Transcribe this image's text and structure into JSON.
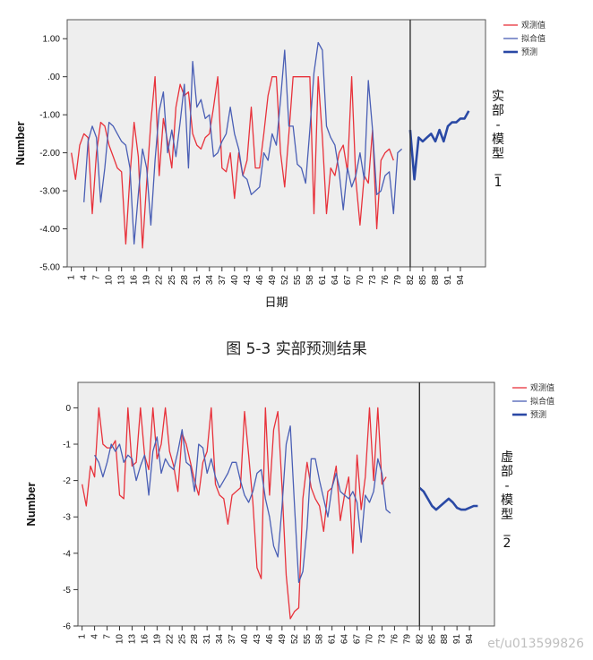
{
  "caption": "图 5-3  实部预测结果",
  "watermark": "et/u013599826",
  "colors": {
    "observed": "#e8323b",
    "fitted": "#4a5fb5",
    "forecast": "#2a49a5",
    "plot_bg": "#eeeeee"
  },
  "chart_data": [
    {
      "type": "line",
      "ylabel": "Number",
      "xlabel": "日期",
      "panel_label": "实部-模型_1",
      "ylim": [
        -5,
        1.5
      ],
      "yticks": [
        1,
        0,
        -1,
        -2,
        -3,
        -4,
        -5
      ],
      "ytick_labels": [
        "1.00",
        ".00",
        "-1.00",
        "-2.00",
        "-3.00",
        "-4.00",
        "-5.00"
      ],
      "xlim": [
        0,
        100
      ],
      "xticks": [
        1,
        4,
        7,
        10,
        13,
        16,
        19,
        22,
        25,
        28,
        31,
        34,
        37,
        40,
        43,
        46,
        49,
        52,
        55,
        58,
        61,
        64,
        67,
        70,
        73,
        76,
        79,
        82,
        85,
        88,
        91,
        94
      ],
      "forecast_start": 82,
      "legend": [
        "观测值",
        "拟合值",
        "预测"
      ],
      "series": [
        {
          "name": "观测值",
          "x_start": 1,
          "values": [
            -2.0,
            -2.7,
            -1.8,
            -1.5,
            -1.6,
            -3.6,
            -2.0,
            -1.2,
            -1.3,
            -1.8,
            -2.1,
            -2.4,
            -2.5,
            -4.4,
            -2.6,
            -1.2,
            -2.1,
            -4.5,
            -2.8,
            -1.2,
            0.0,
            -2.6,
            -1.1,
            -1.7,
            -2.4,
            -0.8,
            -0.2,
            -0.5,
            -0.4,
            -1.5,
            -1.8,
            -1.9,
            -1.6,
            -1.5,
            -0.8,
            0.0,
            -2.4,
            -2.5,
            -2.0,
            -3.2,
            -2.0,
            -2.6,
            -2.2,
            -0.8,
            -2.4,
            -2.4,
            -1.5,
            -0.5,
            0.0,
            0.0,
            -2.0,
            -2.9,
            -1.5,
            0.0,
            0.0,
            0.0,
            0.0,
            0.0,
            -3.6,
            0.0,
            -1.6,
            -3.6,
            -2.4,
            -2.6,
            -2.0,
            -1.8,
            -2.5,
            0.0,
            -2.7,
            -3.9,
            -2.6,
            -2.8,
            -1.4,
            -4.0,
            -2.2,
            -2.0,
            -1.9,
            -2.2
          ]
        },
        {
          "name": "拟合值",
          "x_start": 4,
          "values": [
            -3.3,
            -1.7,
            -1.3,
            -1.6,
            -3.3,
            -2.4,
            -1.2,
            -1.3,
            -1.5,
            -1.7,
            -1.8,
            -2.4,
            -4.4,
            -3.1,
            -1.9,
            -2.4,
            -3.9,
            -2.2,
            -0.9,
            -0.4,
            -2.0,
            -1.4,
            -2.1,
            -1.2,
            -0.2,
            -2.4,
            0.4,
            -0.8,
            -0.6,
            -1.1,
            -1.0,
            -2.1,
            -2.0,
            -1.7,
            -1.5,
            -0.8,
            -1.5,
            -1.9,
            -2.6,
            -2.7,
            -3.1,
            -3.0,
            -2.9,
            -2.0,
            -2.2,
            -1.5,
            -1.8,
            -0.6,
            0.7,
            -1.3,
            -1.3,
            -2.3,
            -2.4,
            -2.8,
            -1.4,
            0.1,
            0.9,
            0.7,
            -1.3,
            -1.6,
            -1.8,
            -2.5,
            -3.5,
            -2.4,
            -2.9,
            -2.6,
            -2.0,
            -2.7,
            -0.1,
            -1.4,
            -3.1,
            -3.0,
            -2.6,
            -2.5,
            -3.6,
            -2.0,
            -1.9
          ]
        },
        {
          "name": "预测",
          "x_start": 82,
          "values": [
            -1.4,
            -2.7,
            -1.6,
            -1.7,
            -1.6,
            -1.5,
            -1.7,
            -1.4,
            -1.7,
            -1.3,
            -1.2,
            -1.2,
            -1.1,
            -1.1,
            -0.9
          ]
        }
      ]
    },
    {
      "type": "line",
      "ylabel": "Number",
      "panel_label": "虚部-模型_2",
      "ylim": [
        -6,
        0.7
      ],
      "yticks": [
        0,
        -1,
        -2,
        -3,
        -4,
        -5,
        -6
      ],
      "ytick_labels": [
        "0",
        "-1",
        "-2",
        "-3",
        "-4",
        "-5",
        "-6"
      ],
      "xlim": [
        0,
        100
      ],
      "xticks": [
        1,
        4,
        7,
        10,
        13,
        16,
        19,
        22,
        25,
        28,
        31,
        34,
        37,
        40,
        43,
        46,
        49,
        52,
        55,
        58,
        61,
        64,
        67,
        70,
        73,
        76,
        79,
        82,
        85,
        88,
        91,
        94
      ],
      "forecast_start": 82,
      "legend": [
        "观测值",
        "拟合值",
        "预测"
      ],
      "series": [
        {
          "name": "观测值",
          "x_start": 1,
          "values": [
            -2.1,
            -2.7,
            -1.6,
            -1.9,
            0.0,
            -1.0,
            -1.1,
            -1.1,
            -0.9,
            -2.4,
            -2.5,
            0.0,
            -1.6,
            -1.5,
            0.0,
            -1.3,
            -1.7,
            0.0,
            -1.4,
            -1.0,
            0.0,
            -1.2,
            -1.6,
            -2.3,
            -0.7,
            -1.0,
            -1.5,
            -2.0,
            -2.4,
            -1.5,
            -1.2,
            0.0,
            -2.1,
            -2.4,
            -2.5,
            -3.2,
            -2.4,
            -2.3,
            -2.2,
            -0.1,
            -1.3,
            -2.6,
            -4.4,
            -4.7,
            0.0,
            -2.4,
            -0.6,
            -0.1,
            -2.2,
            -4.6,
            -5.8,
            -5.6,
            -5.5,
            -2.5,
            -1.5,
            -2.2,
            -2.5,
            -2.7,
            -3.4,
            -2.3,
            -2.2,
            -1.6,
            -3.1,
            -2.4,
            -1.9,
            -4.0,
            -1.3,
            -2.8,
            -1.9,
            0.0,
            -2.0,
            0.0,
            -2.1,
            -1.9
          ]
        },
        {
          "name": "拟合值",
          "x_start": 4,
          "values": [
            -1.3,
            -1.5,
            -1.9,
            -1.5,
            -1.0,
            -1.2,
            -1.0,
            -1.5,
            -1.3,
            -1.4,
            -2.0,
            -1.6,
            -1.3,
            -2.4,
            -1.2,
            -0.8,
            -1.8,
            -1.4,
            -1.6,
            -1.7,
            -1.2,
            -0.6,
            -1.5,
            -1.6,
            -2.3,
            -1.0,
            -1.1,
            -1.8,
            -1.4,
            -1.9,
            -2.2,
            -2.0,
            -1.8,
            -1.5,
            -1.5,
            -2.0,
            -2.4,
            -2.6,
            -2.3,
            -1.8,
            -1.7,
            -2.5,
            -3.0,
            -3.8,
            -4.1,
            -2.7,
            -1.0,
            -0.5,
            -2.7,
            -4.8,
            -4.5,
            -3.3,
            -1.4,
            -1.4,
            -2.0,
            -2.5,
            -3.0,
            -2.2,
            -1.8,
            -2.3,
            -2.4,
            -2.5,
            -2.3,
            -2.6,
            -3.7,
            -2.4,
            -2.6,
            -2.3,
            -1.4,
            -1.8,
            -2.8,
            -2.9
          ]
        },
        {
          "name": "预测",
          "x_start": 82,
          "values": [
            -2.2,
            -2.3,
            -2.5,
            -2.7,
            -2.8,
            -2.7,
            -2.6,
            -2.5,
            -2.6,
            -2.75,
            -2.8,
            -2.8,
            -2.75,
            -2.7,
            -2.7
          ]
        }
      ]
    }
  ]
}
